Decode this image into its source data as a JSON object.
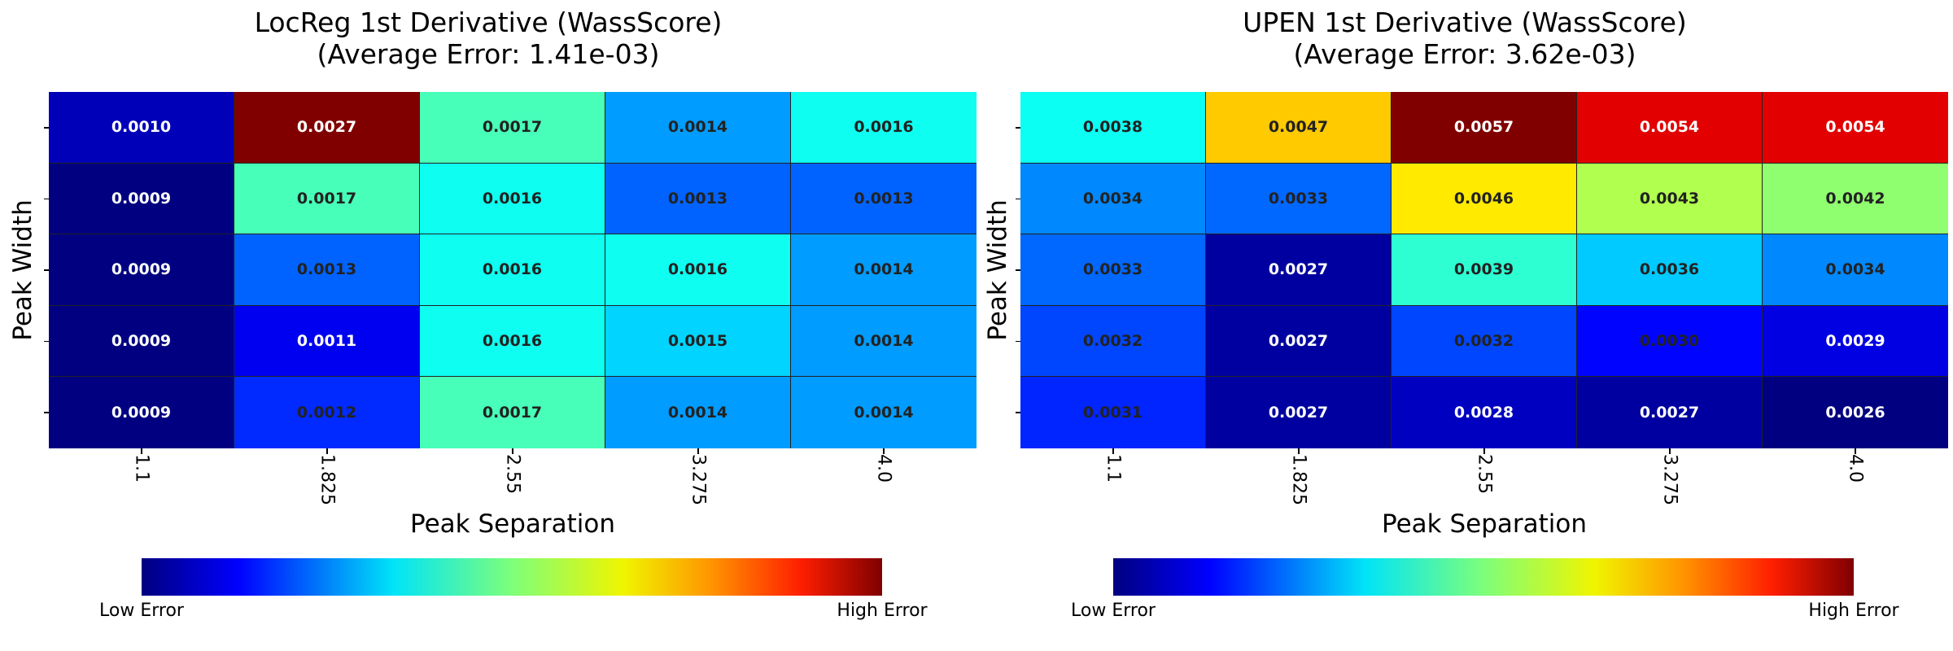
{
  "chart_data": [
    {
      "type": "heatmap",
      "title": "LocReg 1st Derivative (WassScore)",
      "subtitle": "(Average Error: 1.41e-03)",
      "xlabel": "Peak Separation",
      "ylabel": "Peak Width",
      "x_ticks": [
        "1.1",
        "1.825",
        "2.55",
        "3.275",
        "4.0"
      ],
      "values": [
        [
          "0.0010",
          "0.0027",
          "0.0017",
          "0.0014",
          "0.0016"
        ],
        [
          "0.0009",
          "0.0017",
          "0.0016",
          "0.0013",
          "0.0013"
        ],
        [
          "0.0009",
          "0.0013",
          "0.0016",
          "0.0016",
          "0.0014"
        ],
        [
          "0.0009",
          "0.0011",
          "0.0016",
          "0.0015",
          "0.0014"
        ],
        [
          "0.0009",
          "0.0012",
          "0.0017",
          "0.0014",
          "0.0014"
        ]
      ],
      "colorbar": {
        "low_label": "Low Error",
        "high_label": "High Error",
        "colormap": "jet"
      }
    },
    {
      "type": "heatmap",
      "title": "UPEN 1st Derivative (WassScore)",
      "subtitle": "(Average Error: 3.62e-03)",
      "xlabel": "Peak Separation",
      "ylabel": "Peak Width",
      "x_ticks": [
        "1.1",
        "1.825",
        "2.55",
        "3.275",
        "4.0"
      ],
      "values": [
        [
          "0.0038",
          "0.0047",
          "0.0057",
          "0.0054",
          "0.0054"
        ],
        [
          "0.0034",
          "0.0033",
          "0.0046",
          "0.0043",
          "0.0042"
        ],
        [
          "0.0033",
          "0.0027",
          "0.0039",
          "0.0036",
          "0.0034"
        ],
        [
          "0.0032",
          "0.0027",
          "0.0032",
          "0.0030",
          "0.0029"
        ],
        [
          "0.0031",
          "0.0027",
          "0.0028",
          "0.0027",
          "0.0026"
        ]
      ],
      "colorbar": {
        "low_label": "Low Error",
        "high_label": "High Error",
        "colormap": "jet"
      }
    }
  ]
}
